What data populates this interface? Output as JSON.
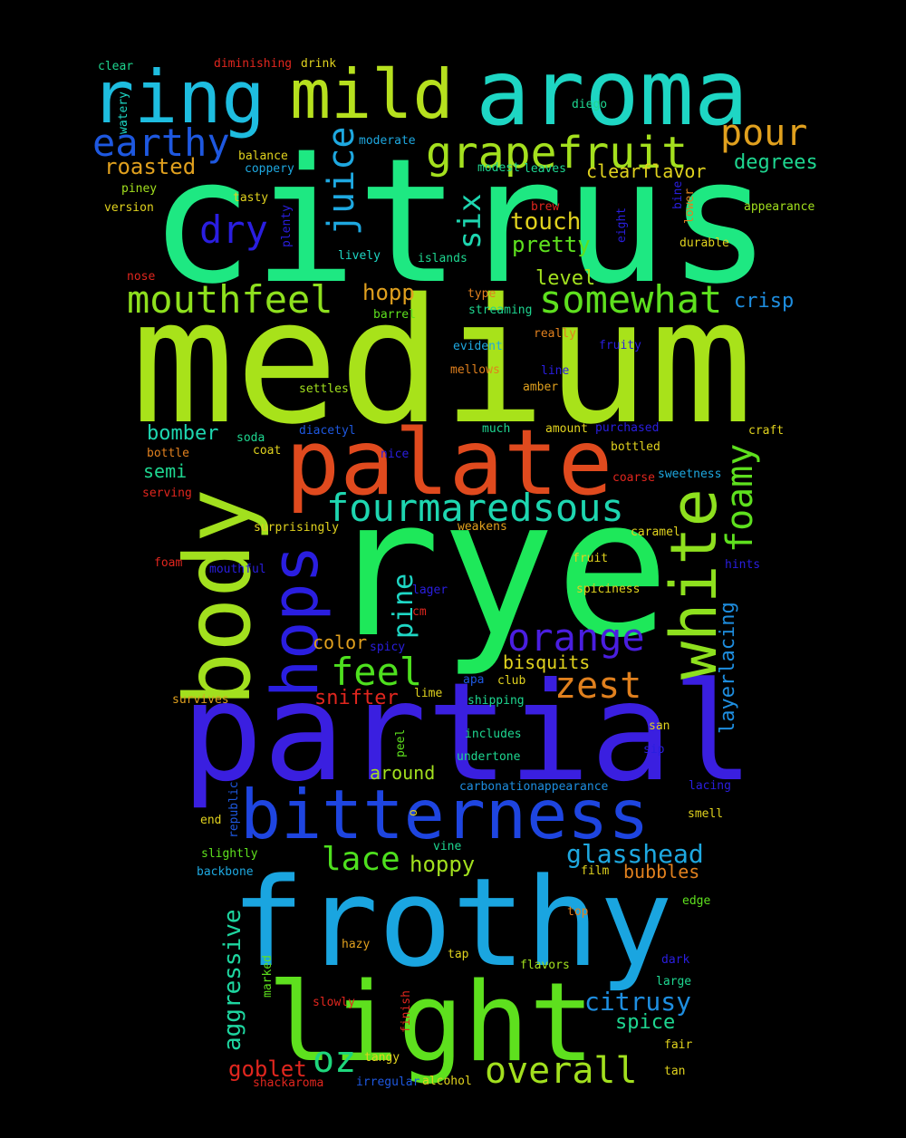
{
  "words": [
    {
      "text": "citrus",
      "color": "#1ee882"
    },
    {
      "text": "medium",
      "color": "#a8e21a"
    },
    {
      "text": "rye",
      "color": "#1ee85a"
    },
    {
      "text": "partial",
      "color": "#3a1fe0"
    },
    {
      "text": "frothy",
      "color": "#1aa5e0"
    },
    {
      "text": "aroma",
      "color": "#1ed6c4"
    },
    {
      "text": "light",
      "color": "#5ee01e"
    },
    {
      "text": "palate",
      "color": "#e04a1e"
    },
    {
      "text": "body",
      "color": "#a2e01e"
    },
    {
      "text": "bitterness",
      "color": "#1e45e0"
    },
    {
      "text": "white",
      "color": "#8ee01e"
    },
    {
      "text": "ring",
      "color": "#1ebde0"
    },
    {
      "text": "mild",
      "color": "#b6e01e"
    },
    {
      "text": "hops",
      "color": "#2a1ee0"
    },
    {
      "text": "grapefruit",
      "color": "#a4e01e"
    },
    {
      "text": "fourmaredsous",
      "color": "#1ed6b0"
    },
    {
      "text": "somewhat",
      "color": "#5ee01e"
    },
    {
      "text": "mouthfeel",
      "color": "#8ee01e"
    },
    {
      "text": "earthy",
      "color": "#1e58e0"
    },
    {
      "text": "orange",
      "color": "#4a1ee0"
    },
    {
      "text": "juice",
      "color": "#1ea8e0"
    },
    {
      "text": "dry",
      "color": "#2a1ee0"
    },
    {
      "text": "pour",
      "color": "#e0a01e"
    },
    {
      "text": "foamy",
      "color": "#5ee01e"
    },
    {
      "text": "feel",
      "color": "#4ee01e"
    },
    {
      "text": "zest",
      "color": "#e0801e"
    },
    {
      "text": "six",
      "color": "#1ed6b0"
    },
    {
      "text": "overall",
      "color": "#a2e01e"
    },
    {
      "text": "oz",
      "color": "#1ed67c"
    },
    {
      "text": "citrusy",
      "color": "#1e8ee0"
    },
    {
      "text": "lace",
      "color": "#4ee01e"
    },
    {
      "text": "glasshead",
      "color": "#1ea8e0"
    },
    {
      "text": "pine",
      "color": "#1ed6c4"
    },
    {
      "text": "aggressive",
      "color": "#1ed6a0"
    },
    {
      "text": "touch",
      "color": "#e0d21e"
    },
    {
      "text": "roasted",
      "color": "#e0a01e"
    },
    {
      "text": "degrees",
      "color": "#1ed690"
    },
    {
      "text": "pretty",
      "color": "#5ee01e"
    },
    {
      "text": "clearflavor",
      "color": "#e0d21e"
    },
    {
      "text": "hoppy",
      "color": "#a2e01e"
    },
    {
      "text": "bisquits",
      "color": "#e0d21e"
    },
    {
      "text": "layerlacing",
      "color": "#1e8ee0"
    },
    {
      "text": "goblet",
      "color": "#e0261e"
    },
    {
      "text": "spice",
      "color": "#1ed690"
    },
    {
      "text": "snifter",
      "color": "#e0261e"
    },
    {
      "text": "bomber",
      "color": "#1ed6b0"
    },
    {
      "text": "hopp",
      "color": "#e0a01e"
    },
    {
      "text": "crisp",
      "color": "#1e8ee0"
    },
    {
      "text": "level",
      "color": "#a2e01e"
    },
    {
      "text": "color",
      "color": "#e0a01e"
    },
    {
      "text": "around",
      "color": "#a2e01e"
    },
    {
      "text": "bubbles",
      "color": "#e0801e"
    },
    {
      "text": "semi",
      "color": "#1ed690"
    },
    {
      "text": "clear",
      "color": "#1ed690"
    },
    {
      "text": "diminishing",
      "color": "#e0261e"
    },
    {
      "text": "drink",
      "color": "#e0d21e"
    },
    {
      "text": "diego",
      "color": "#1ed690"
    },
    {
      "text": "watery",
      "color": "#1ed6c4"
    },
    {
      "text": "balance",
      "color": "#e0d21e"
    },
    {
      "text": "coppery",
      "color": "#1ea8e0"
    },
    {
      "text": "moderate",
      "color": "#1ea8e0"
    },
    {
      "text": "modest",
      "color": "#1ed690"
    },
    {
      "text": "leaves",
      "color": "#1ed690"
    },
    {
      "text": "piney",
      "color": "#a2e01e"
    },
    {
      "text": "tasty",
      "color": "#e0d21e"
    },
    {
      "text": "version",
      "color": "#e0d21e"
    },
    {
      "text": "plenty",
      "color": "#2a1ee0"
    },
    {
      "text": "eight",
      "color": "#2a1ee0"
    },
    {
      "text": "bine",
      "color": "#2a1ee0"
    },
    {
      "text": "lower",
      "color": "#e0801e"
    },
    {
      "text": "appearance",
      "color": "#a2e01e"
    },
    {
      "text": "durable",
      "color": "#e0d21e"
    },
    {
      "text": "lively",
      "color": "#1ed6c4"
    },
    {
      "text": "islands",
      "color": "#1ed690"
    },
    {
      "text": "nose",
      "color": "#e0261e"
    },
    {
      "text": "type",
      "color": "#e0801e"
    },
    {
      "text": "streaming",
      "color": "#1ed690"
    },
    {
      "text": "barrel",
      "color": "#5ee01e"
    },
    {
      "text": "really",
      "color": "#e0801e"
    },
    {
      "text": "evident",
      "color": "#1ea8e0"
    },
    {
      "text": "fruity",
      "color": "#2a1ee0"
    },
    {
      "text": "mellows",
      "color": "#e0801e"
    },
    {
      "text": "line",
      "color": "#2a1ee0"
    },
    {
      "text": "settles",
      "color": "#a2e01e"
    },
    {
      "text": "amber",
      "color": "#e0a01e"
    },
    {
      "text": "diacetyl",
      "color": "#1e58e0"
    },
    {
      "text": "much",
      "color": "#1ed690"
    },
    {
      "text": "amount",
      "color": "#e0d21e"
    },
    {
      "text": "purchased",
      "color": "#2a1ee0"
    },
    {
      "text": "craft",
      "color": "#e0d21e"
    },
    {
      "text": "soda",
      "color": "#1ed690"
    },
    {
      "text": "coat",
      "color": "#e0d21e"
    },
    {
      "text": "bottle",
      "color": "#e0801e"
    },
    {
      "text": "nice",
      "color": "#2a1ee0"
    },
    {
      "text": "bottled",
      "color": "#e0d21e"
    },
    {
      "text": "coarse",
      "color": "#e0261e"
    },
    {
      "text": "sweetness",
      "color": "#1ea8e0"
    },
    {
      "text": "serving",
      "color": "#e0261e"
    },
    {
      "text": "surprisingly",
      "color": "#e0d21e"
    },
    {
      "text": "weakens",
      "color": "#e0a01e"
    },
    {
      "text": "caramel",
      "color": "#e0d21e"
    },
    {
      "text": "foam",
      "color": "#e0261e"
    },
    {
      "text": "mouthful",
      "color": "#2a1ee0"
    },
    {
      "text": "fruit",
      "color": "#e0d21e"
    },
    {
      "text": "hints",
      "color": "#2a1ee0"
    },
    {
      "text": "lager",
      "color": "#2a1ee0"
    },
    {
      "text": "spiciness",
      "color": "#e0d21e"
    },
    {
      "text": "cm",
      "color": "#e0261e"
    },
    {
      "text": "spicy",
      "color": "#2a1ee0"
    },
    {
      "text": "apa",
      "color": "#1e58e0"
    },
    {
      "text": "club",
      "color": "#e0d21e"
    },
    {
      "text": "survives",
      "color": "#e0a01e"
    },
    {
      "text": "lime",
      "color": "#e0d21e"
    },
    {
      "text": "shipping",
      "color": "#1ed690"
    },
    {
      "text": "peel",
      "color": "#5ee01e"
    },
    {
      "text": "includes",
      "color": "#1ed690"
    },
    {
      "text": "san",
      "color": "#e0d21e"
    },
    {
      "text": "undertone",
      "color": "#1ed690"
    },
    {
      "text": "sip",
      "color": "#2a1ee0"
    },
    {
      "text": "carbonationappearance",
      "color": "#1e8ee0"
    },
    {
      "text": "lacing",
      "color": "#2a1ee0"
    },
    {
      "text": "republic",
      "color": "#1e58e0"
    },
    {
      "text": "end",
      "color": "#e0d21e"
    },
    {
      "text": "o",
      "color": "#e0d21e"
    },
    {
      "text": "smell",
      "color": "#e0d21e"
    },
    {
      "text": "slightly",
      "color": "#5ee01e"
    },
    {
      "text": "vine",
      "color": "#1ed690"
    },
    {
      "text": "backbone",
      "color": "#1ea8e0"
    },
    {
      "text": "film",
      "color": "#e0d21e"
    },
    {
      "text": "edge",
      "color": "#5ee01e"
    },
    {
      "text": "top",
      "color": "#e0801e"
    },
    {
      "text": "hazy",
      "color": "#e0a01e"
    },
    {
      "text": "tap",
      "color": "#e0d21e"
    },
    {
      "text": "marked",
      "color": "#5ee01e"
    },
    {
      "text": "flavors",
      "color": "#a2e01e"
    },
    {
      "text": "dark",
      "color": "#2a1ee0"
    },
    {
      "text": "large",
      "color": "#1ed690"
    },
    {
      "text": "slowly",
      "color": "#e0261e"
    },
    {
      "text": "finish",
      "color": "#e0261e"
    },
    {
      "text": "fair",
      "color": "#e0d21e"
    },
    {
      "text": "tangy",
      "color": "#e0d21e"
    },
    {
      "text": "tan",
      "color": "#e0d21e"
    },
    {
      "text": "shackaroma",
      "color": "#e0261e"
    },
    {
      "text": "irregular",
      "color": "#1e58e0"
    },
    {
      "text": "alcohol",
      "color": "#e0d21e"
    },
    {
      "text": "brew",
      "color": "#e0261e"
    }
  ]
}
